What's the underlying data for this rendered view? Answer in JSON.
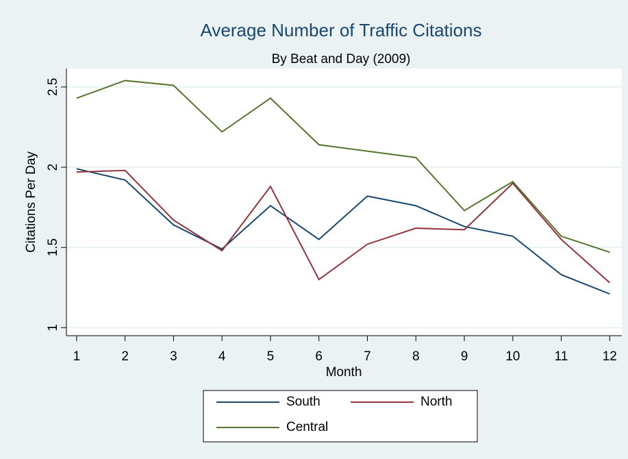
{
  "chart_data": {
    "type": "line",
    "title": "Average Number of Traffic Citations",
    "subtitle": "By Beat and Day (2009)",
    "x_label": "Month",
    "y_label": "Citations Per Day",
    "x": [
      1,
      2,
      3,
      4,
      5,
      6,
      7,
      8,
      9,
      10,
      11,
      12
    ],
    "xlim": [
      0.79,
      12.25
    ],
    "xticks": [
      1,
      2,
      3,
      4,
      5,
      6,
      7,
      8,
      9,
      10,
      11,
      12
    ],
    "ylim": [
      0.95,
      2.615
    ],
    "yticks": [
      1,
      1.5,
      2,
      2.5
    ],
    "grid": true,
    "legend_position": "bottom",
    "series": [
      {
        "name": "South",
        "color": "#1a476f",
        "values": [
          1.99,
          1.92,
          1.64,
          1.49,
          1.76,
          1.55,
          1.82,
          1.76,
          1.63,
          1.57,
          1.33,
          1.21
        ]
      },
      {
        "name": "North",
        "color": "#90353b",
        "values": [
          1.97,
          1.98,
          1.67,
          1.48,
          1.88,
          1.3,
          1.52,
          1.62,
          1.61,
          1.9,
          1.55,
          1.28
        ]
      },
      {
        "name": "Central",
        "color": "#55752f",
        "values": [
          2.43,
          2.54,
          2.51,
          2.22,
          2.43,
          2.14,
          2.1,
          2.06,
          1.73,
          1.91,
          1.57,
          1.47
        ]
      }
    ]
  }
}
